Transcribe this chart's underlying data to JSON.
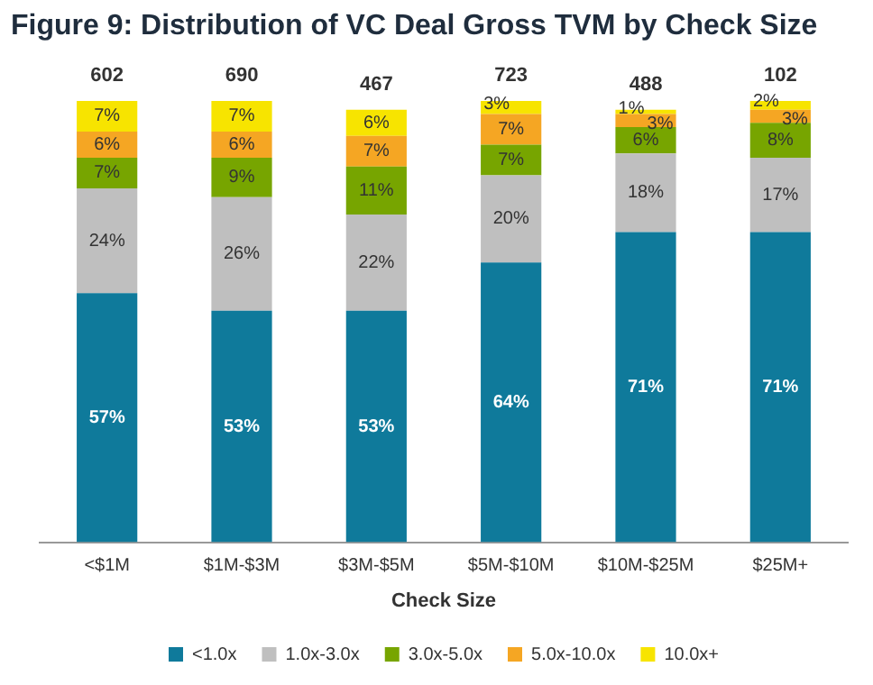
{
  "chart_data": {
    "type": "bar",
    "title": "Figure 9: Distribution of VC Deal Gross TVM by Check Size",
    "xlabel": "Check Size",
    "stacked": true,
    "tick_labels": "x",
    "legend": "bottom",
    "grid": false,
    "categories": [
      "<$1M",
      "$1M-$3M",
      "$3M-$5M",
      "$5M-$10M",
      "$10M-$25M",
      "$25M+"
    ],
    "series": [
      {
        "name": "<1.0x",
        "color": "#0f7a9b",
        "values": [
          57,
          53,
          53,
          64,
          71,
          71
        ],
        "value_labels": [
          "57%",
          "53%",
          "53%",
          "64%",
          "71%",
          "71%"
        ]
      },
      {
        "name": "1.0x-3.0x",
        "color": "#bfbfbf",
        "values": [
          24,
          26,
          22,
          20,
          18,
          17
        ],
        "value_labels": [
          "24%",
          "26%",
          "22%",
          "20%",
          "18%",
          "17%"
        ]
      },
      {
        "name": "3.0x-5.0x",
        "color": "#77a500",
        "values": [
          7,
          9,
          11,
          7,
          6,
          8
        ],
        "value_labels": [
          "7%",
          "9%",
          "11%",
          "7%",
          "6%",
          "8%"
        ]
      },
      {
        "name": "5.0x-10.0x",
        "color": "#f5a623",
        "values": [
          6,
          6,
          7,
          7,
          3,
          3
        ],
        "value_labels": [
          "6%",
          "6%",
          "7%",
          "7%",
          "3%",
          "3%"
        ]
      },
      {
        "name": "10.0x+",
        "color": "#f7e400",
        "values": [
          7,
          7,
          6,
          3,
          1,
          2
        ],
        "value_labels": [
          "7%",
          "7%",
          "6%",
          "3%",
          "1%",
          "2%"
        ]
      }
    ],
    "annotations": [
      "602",
      "690",
      "467",
      "723",
      "488",
      "102"
    ]
  }
}
